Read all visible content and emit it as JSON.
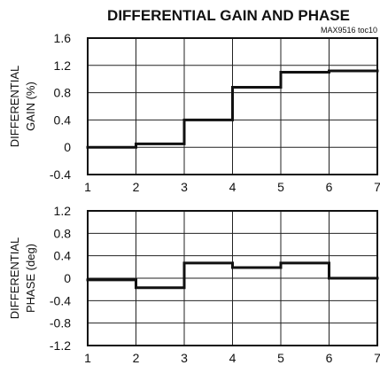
{
  "title": "DIFFERENTIAL GAIN AND PHASE",
  "part_note": "MAX9516 toc10",
  "chart_data": [
    {
      "type": "line",
      "step": true,
      "grid": true,
      "ylabel_lines": [
        "DIFFERENTIAL",
        "GAIN (%)"
      ],
      "xlim": [
        1,
        7
      ],
      "ylim": [
        -0.4,
        1.6
      ],
      "xticks": [
        "1",
        "2",
        "3",
        "4",
        "5",
        "6",
        "7"
      ],
      "yticks": [
        "1.6",
        "1.2",
        "0.8",
        "0.4",
        "0",
        "-0.4"
      ],
      "series": [
        {
          "x": [
            1,
            2,
            3,
            4,
            5,
            6,
            7
          ],
          "y": [
            0.0,
            0.05,
            0.4,
            0.88,
            1.1,
            1.12,
            1.12
          ]
        }
      ]
    },
    {
      "type": "line",
      "step": true,
      "grid": true,
      "ylabel_lines": [
        "DIFFERENTIAL",
        "PHASE (deg)"
      ],
      "xlim": [
        1,
        7
      ],
      "ylim": [
        -1.2,
        1.2
      ],
      "xticks": [
        "1",
        "2",
        "3",
        "4",
        "5",
        "6",
        "7"
      ],
      "yticks": [
        "1.2",
        "0.8",
        "0.4",
        "0",
        "-0.4",
        "-0.8",
        "-1.2"
      ],
      "series": [
        {
          "x": [
            1,
            2,
            3,
            4,
            5,
            6,
            7
          ],
          "y": [
            -0.03,
            -0.17,
            0.27,
            0.19,
            0.27,
            0.0,
            0.0
          ]
        }
      ]
    }
  ]
}
